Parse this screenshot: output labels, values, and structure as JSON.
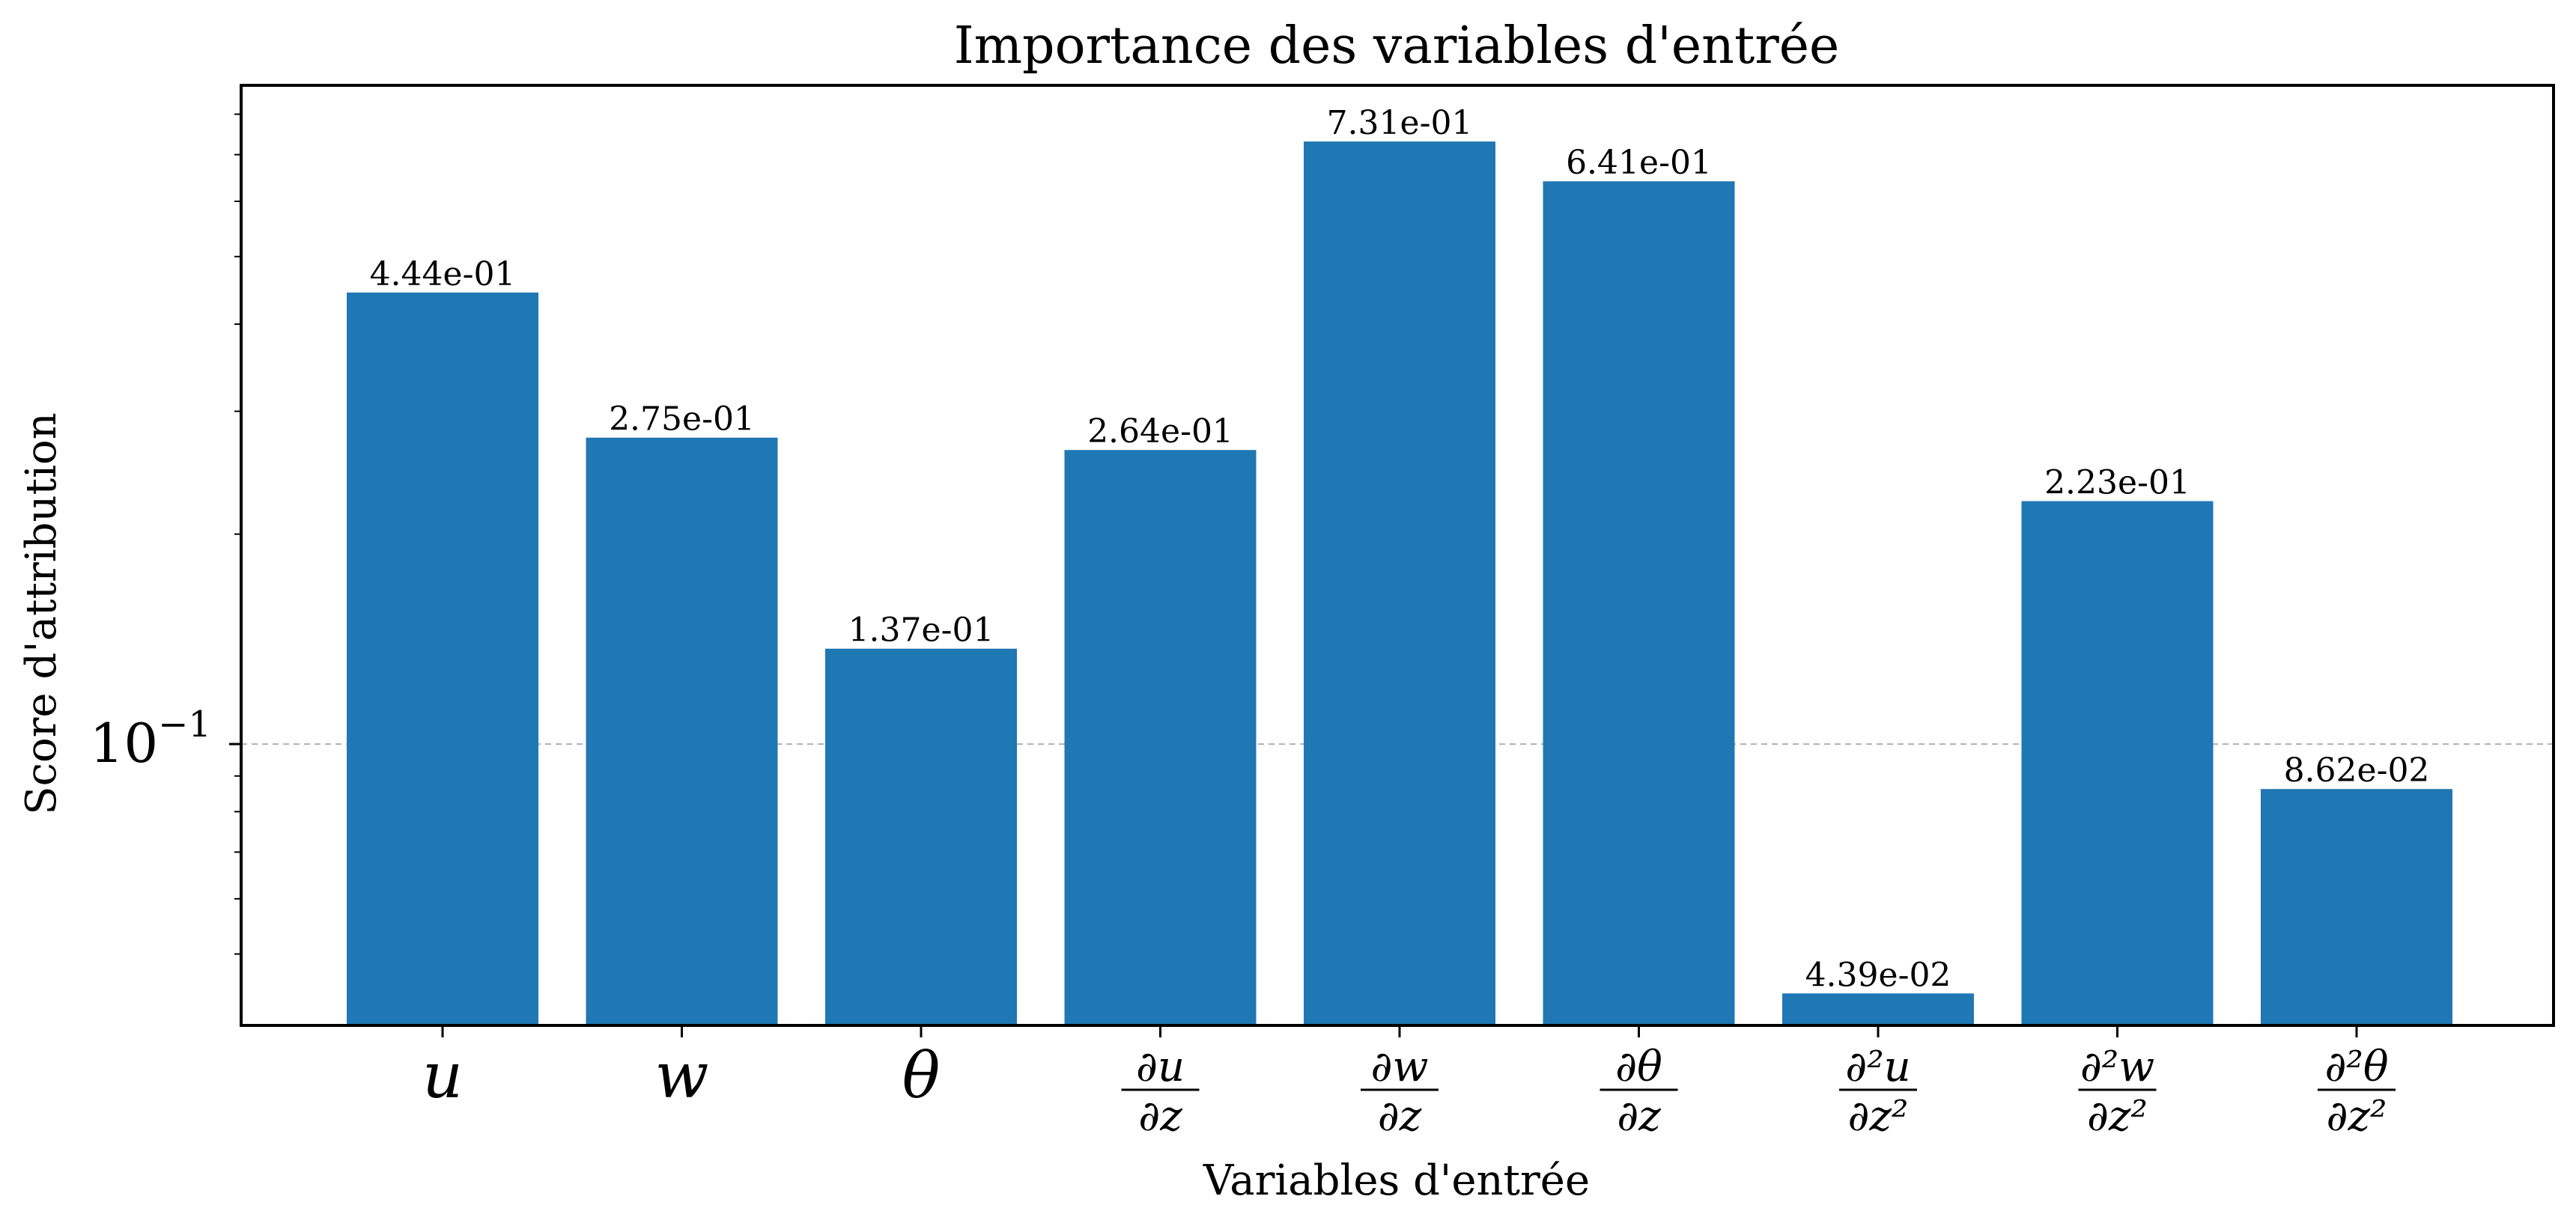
{
  "chart_data": {
    "type": "bar",
    "title": "Importance des variables d'entrée",
    "xlabel": "Variables d'entrée",
    "ylabel": "Score d'attribution",
    "yscale": "log",
    "ylim": [
      0.0395,
      0.88
    ],
    "grid": "horizontal dashed at major ticks",
    "bar_color": "#1f77b4",
    "categories": [
      {
        "num": "u",
        "den": ""
      },
      {
        "num": "w",
        "den": ""
      },
      {
        "num": "θ",
        "den": ""
      },
      {
        "num": "∂u",
        "den": "∂z"
      },
      {
        "num": "∂w",
        "den": "∂z"
      },
      {
        "num": "∂θ",
        "den": "∂z"
      },
      {
        "num": "∂²u",
        "den": "∂z²"
      },
      {
        "num": "∂²w",
        "den": "∂z²"
      },
      {
        "num": "∂²θ",
        "den": "∂z²"
      }
    ],
    "values": [
      0.444,
      0.275,
      0.137,
      0.264,
      0.731,
      0.641,
      0.0439,
      0.223,
      0.0862
    ],
    "value_labels": [
      "4.44e-01",
      "2.75e-01",
      "1.37e-01",
      "2.64e-01",
      "7.31e-01",
      "6.41e-01",
      "4.39e-02",
      "2.23e-01",
      "8.62e-02"
    ],
    "yticks": [
      {
        "base": "10",
        "exp": "−1"
      }
    ]
  }
}
